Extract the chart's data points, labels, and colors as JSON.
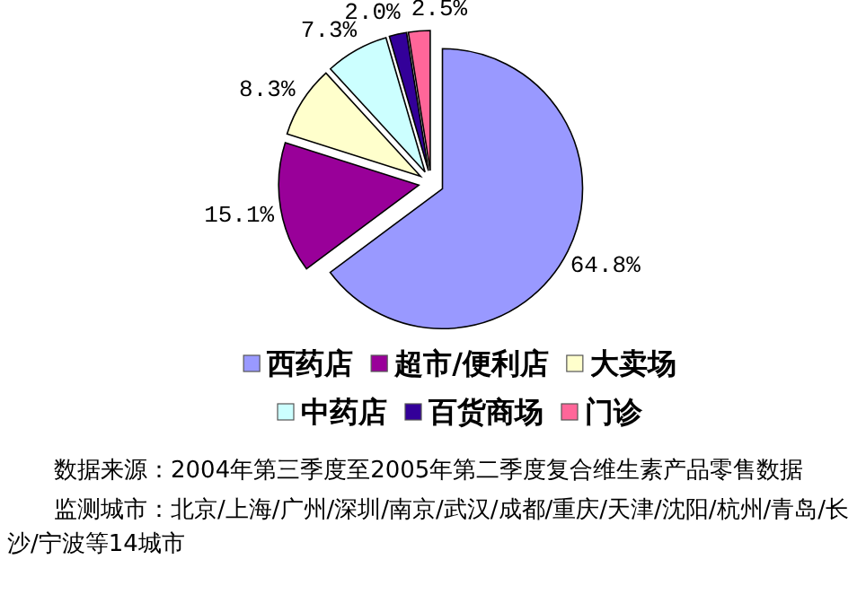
{
  "chart_data": {
    "type": "pie",
    "categories": [
      "西药店",
      "超市/便利店",
      "大卖场",
      "中药店",
      "百货商场",
      "门诊"
    ],
    "values": [
      64.8,
      15.1,
      8.3,
      7.3,
      2.0,
      2.5
    ],
    "colors": [
      "#9999ff",
      "#990099",
      "#ffffcc",
      "#ccffff",
      "#330099",
      "#ff6699"
    ],
    "value_labels": [
      "64.8%",
      "15.1%",
      "8.3%",
      "7.3%",
      "2.0%",
      "2.5%"
    ],
    "legend": "bottom",
    "annotations": [
      "数据来源：2004年第三季度至2005年第二季度复合维生素产品零售数据",
      "监测城市：北京/上海/广州/深圳/南京/武汉/成都/重庆/天津/沈阳/杭州/青岛/长沙/宁波等14城市"
    ]
  }
}
